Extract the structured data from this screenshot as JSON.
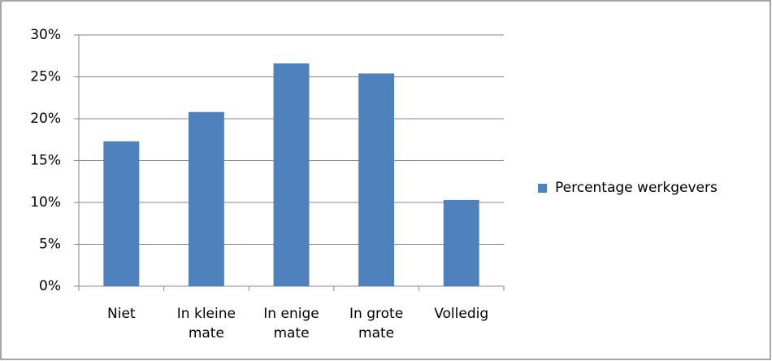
{
  "chart_data": {
    "type": "bar",
    "categories": [
      "Niet",
      "In kleine mate",
      "In enige mate",
      "In grote mate",
      "Volledig"
    ],
    "series": [
      {
        "name": "Percentage werkgevers",
        "color": "#4f81bd",
        "values": [
          17.3,
          20.8,
          26.6,
          25.4,
          10.3
        ]
      }
    ],
    "ylim": [
      0,
      30
    ],
    "yticks": [
      {
        "value": 0,
        "label": "0%"
      },
      {
        "value": 5,
        "label": "5%"
      },
      {
        "value": 10,
        "label": "10%"
      },
      {
        "value": 15,
        "label": "15%"
      },
      {
        "value": 20,
        "label": "20%"
      },
      {
        "value": 25,
        "label": "25%"
      },
      {
        "value": 30,
        "label": "30%"
      }
    ],
    "grid": true,
    "legend": "right"
  }
}
